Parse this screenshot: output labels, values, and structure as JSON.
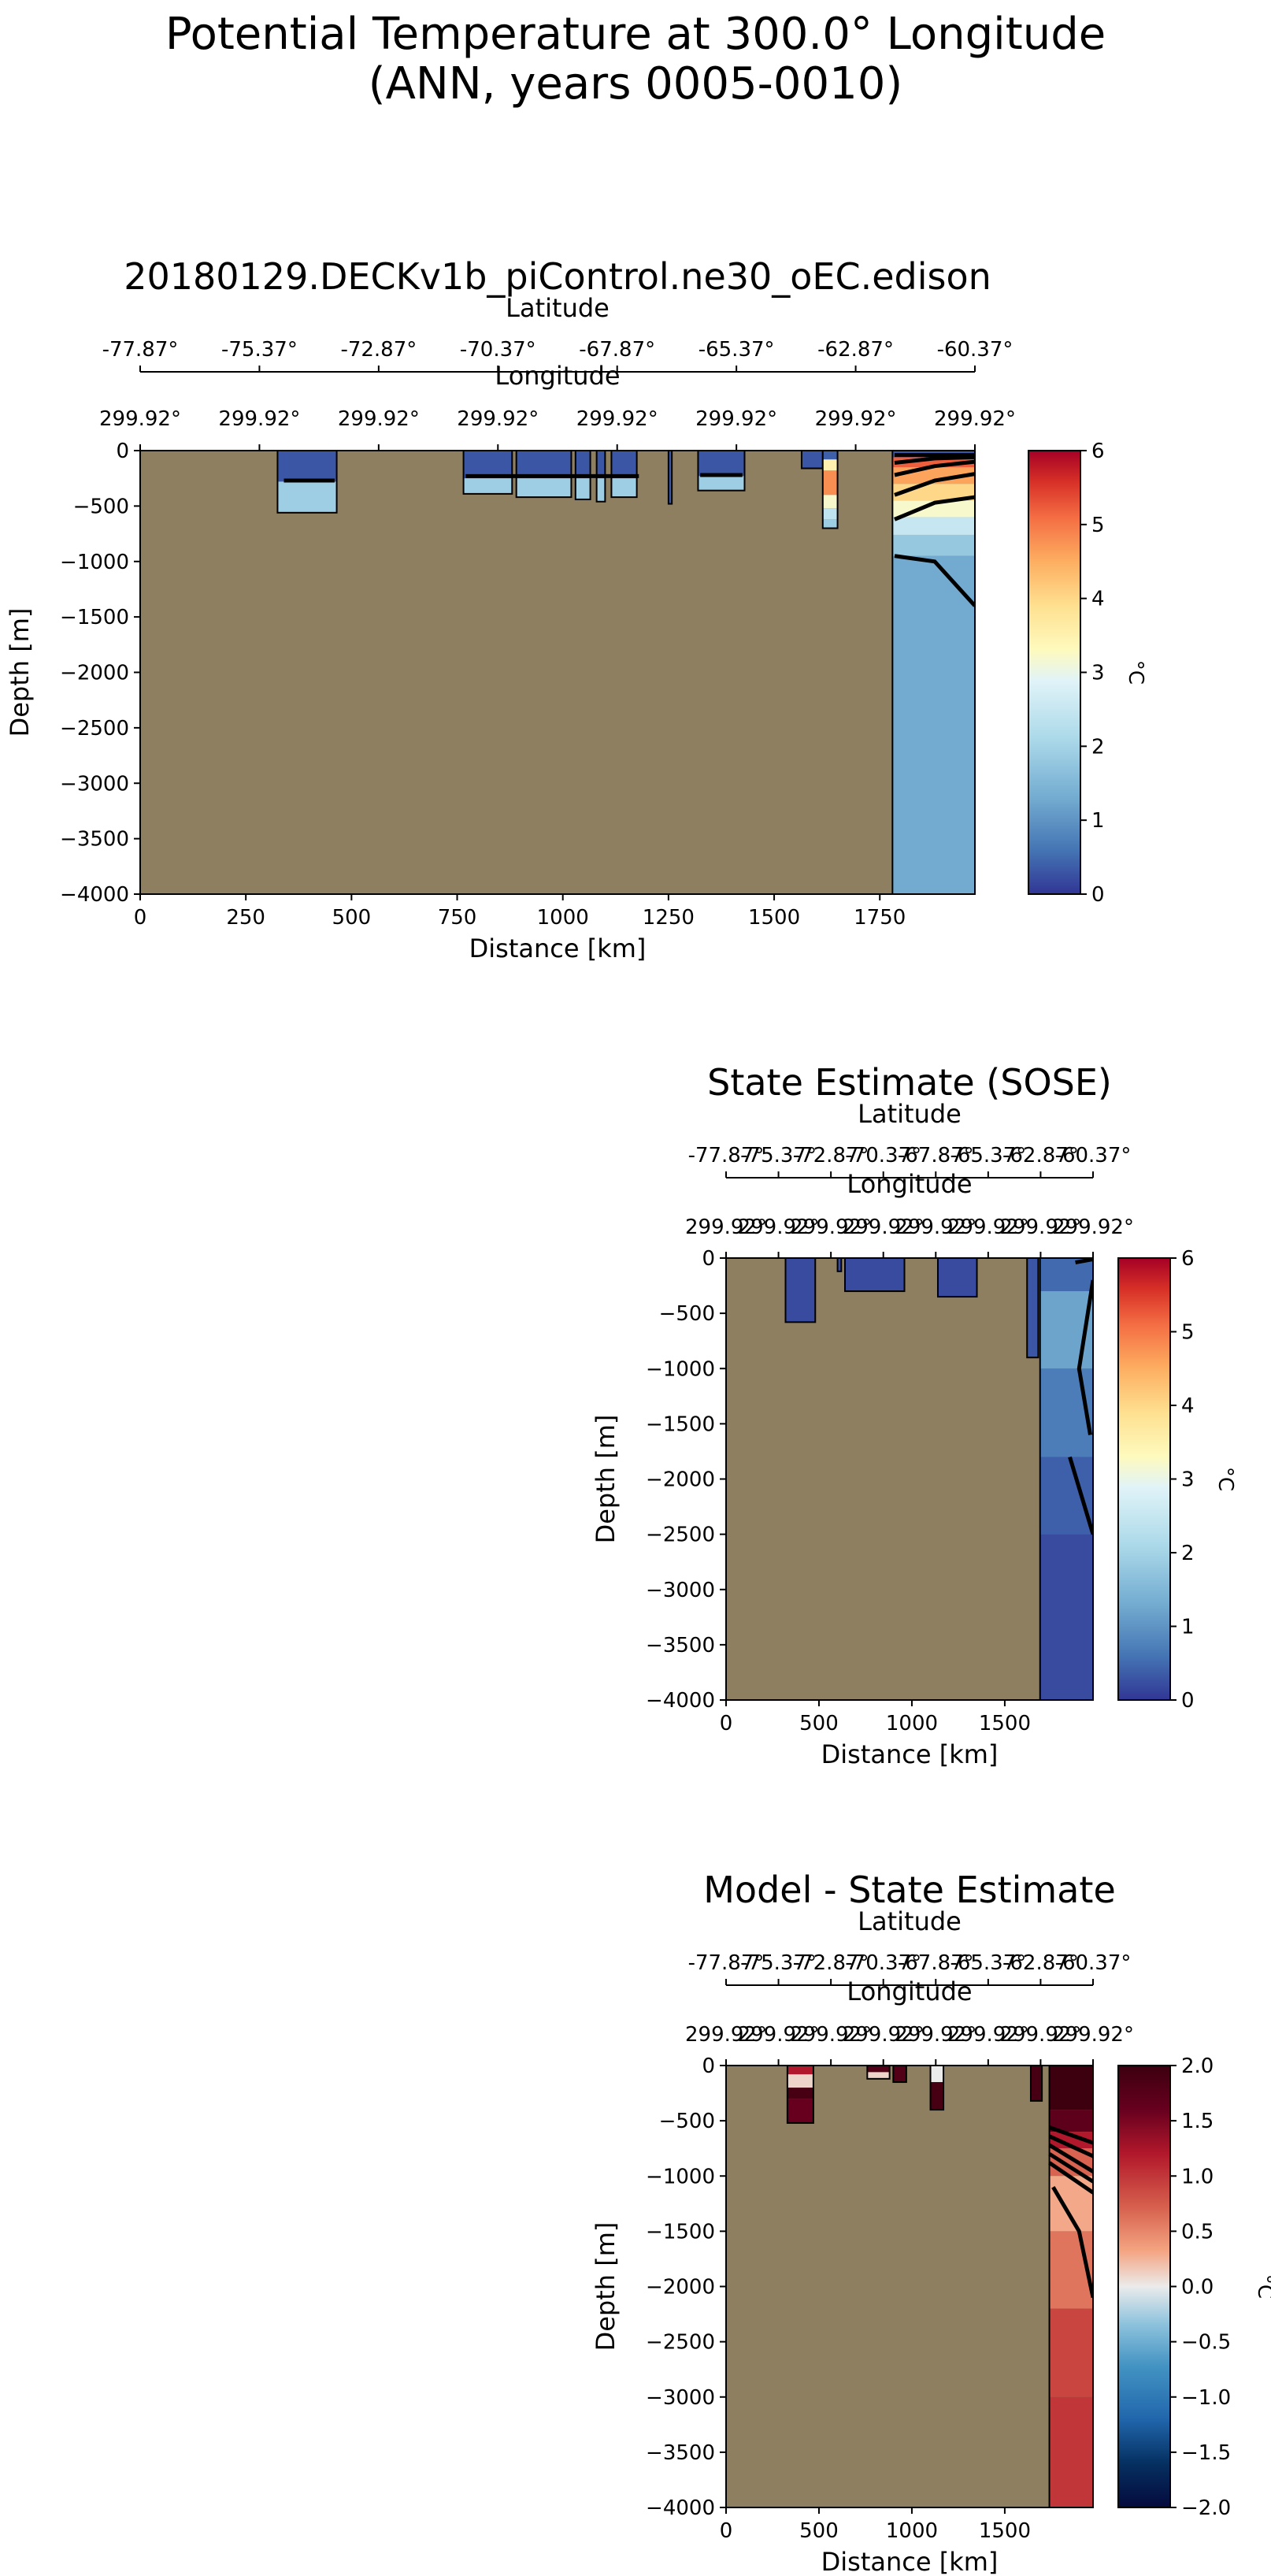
{
  "figure": {
    "title_line1": "Potential Temperature at 300.0° Longitude",
    "title_line2": "(ANN, years 0005-0010)"
  },
  "colors": {
    "land": "#8f7f61",
    "contour": "#000000"
  },
  "chart_data": [
    {
      "id": "model",
      "type": "heatmap",
      "title": "20180129.DECKv1b_piControl.ne30_oEC.edison",
      "xlabel": "Distance [km]",
      "ylabel": "Depth [m]",
      "xlim": [
        0,
        1975
      ],
      "ylim": [
        -4000,
        0
      ],
      "x_ticks": [
        0,
        250,
        500,
        750,
        1000,
        1250,
        1500,
        1750
      ],
      "x_tick_labels": [
        "0",
        "250",
        "500",
        "750",
        "1000",
        "1250",
        "1500",
        "1750"
      ],
      "y_ticks": [
        0,
        -500,
        -1000,
        -1500,
        -2000,
        -2500,
        -3000,
        -3500,
        -4000
      ],
      "y_tick_labels": [
        "0",
        "−500",
        "−1000",
        "−1500",
        "−2000",
        "−2500",
        "−3000",
        "−3500",
        "−4000"
      ],
      "lat_axis_label": "Latitude",
      "lat_tick_labels": [
        "-77.87°",
        "-75.37°",
        "-72.87°",
        "-70.37°",
        "-67.87°",
        "-65.37°",
        "-62.87°",
        "-60.37°"
      ],
      "lon_axis_label": "Longitude",
      "lon_tick_labels": [
        "299.92°",
        "299.92°",
        "299.92°",
        "299.92°",
        "299.92°",
        "299.92°",
        "299.92°",
        "299.92°"
      ],
      "colorbar": {
        "label": "°C",
        "range": [
          0,
          6
        ],
        "ticks": [
          "0",
          "1",
          "2",
          "3",
          "4",
          "5",
          "6"
        ],
        "colormap": "RdYlBu_r"
      },
      "ocean_cells": [
        {
          "x": [
            325,
            465
          ],
          "bottom": -560,
          "temps": [
            [
              -280,
              0.3
            ],
            [
              -560,
              1.9
            ]
          ]
        },
        {
          "x": [
            765,
            880
          ],
          "bottom": -390,
          "temps": [
            [
              -250,
              0.3
            ],
            [
              -390,
              1.9
            ]
          ]
        },
        {
          "x": [
            890,
            1020
          ],
          "bottom": -420,
          "temps": [
            [
              -250,
              0.3
            ],
            [
              -420,
              1.9
            ]
          ]
        },
        {
          "x": [
            1030,
            1065
          ],
          "bottom": -440,
          "temps": [
            [
              -250,
              0.3
            ],
            [
              -440,
              1.9
            ]
          ]
        },
        {
          "x": [
            1080,
            1100
          ],
          "bottom": -460,
          "temps": [
            [
              -250,
              0.3
            ],
            [
              -460,
              1.9
            ]
          ]
        },
        {
          "x": [
            1115,
            1175
          ],
          "bottom": -420,
          "temps": [
            [
              -250,
              0.3
            ],
            [
              -420,
              1.9
            ]
          ]
        },
        {
          "x": [
            1250,
            1258
          ],
          "bottom": -480,
          "temps": [
            [
              -480,
              0.3
            ]
          ]
        },
        {
          "x": [
            1320,
            1430
          ],
          "bottom": -360,
          "temps": [
            [
              -230,
              0.3
            ],
            [
              -360,
              1.9
            ]
          ]
        },
        {
          "x": [
            1565,
            1615
          ],
          "bottom": -160,
          "temps": [
            [
              -160,
              0.3
            ]
          ]
        },
        {
          "x": [
            1615,
            1650
          ],
          "bottom": -700,
          "temps": [
            [
              -80,
              0.4
            ],
            [
              -180,
              3.5
            ],
            [
              -400,
              4.8
            ],
            [
              -520,
              3.2
            ],
            [
              -620,
              2.4
            ],
            [
              -700,
              1.9
            ]
          ]
        },
        {
          "x": [
            1780,
            1975
          ],
          "bottom": -4000,
          "temps": [
            [
              -60,
              0.3
            ],
            [
              -150,
              5.2
            ],
            [
              -300,
              4.6
            ],
            [
              -450,
              4.0
            ],
            [
              -600,
              3.2
            ],
            [
              -760,
              2.5
            ],
            [
              -950,
              1.8
            ],
            [
              -4000,
              1.3
            ]
          ]
        }
      ],
      "contours": [
        {
          "points": [
            [
              340,
              -270
            ],
            [
              460,
              -270
            ]
          ]
        },
        {
          "points": [
            [
              770,
              -230
            ],
            [
              1180,
              -230
            ]
          ]
        },
        {
          "points": [
            [
              1325,
              -220
            ],
            [
              1425,
              -220
            ]
          ]
        },
        {
          "points": [
            [
              1785,
              -40
            ],
            [
              1975,
              -40
            ]
          ]
        },
        {
          "points": [
            [
              1785,
              -110
            ],
            [
              1880,
              -70
            ],
            [
              1975,
              -60
            ]
          ]
        },
        {
          "points": [
            [
              1785,
              -220
            ],
            [
              1880,
              -140
            ],
            [
              1975,
              -100
            ]
          ]
        },
        {
          "points": [
            [
              1785,
              -400
            ],
            [
              1880,
              -270
            ],
            [
              1975,
              -210
            ]
          ]
        },
        {
          "points": [
            [
              1785,
              -620
            ],
            [
              1880,
              -470
            ],
            [
              1975,
              -420
            ]
          ]
        },
        {
          "points": [
            [
              1785,
              -950
            ],
            [
              1880,
              -1000
            ],
            [
              1975,
              -1400
            ]
          ]
        }
      ]
    },
    {
      "id": "obs",
      "type": "heatmap",
      "title": "State Estimate (SOSE)",
      "xlabel": "Distance [km]",
      "ylabel": "Depth [m]",
      "xlim": [
        0,
        1975
      ],
      "ylim": [
        -4000,
        0
      ],
      "x_ticks": [
        0,
        500,
        1000,
        1500
      ],
      "x_tick_labels": [
        "0",
        "500",
        "1000",
        "1500"
      ],
      "y_ticks": [
        0,
        -500,
        -1000,
        -1500,
        -2000,
        -2500,
        -3000,
        -3500,
        -4000
      ],
      "y_tick_labels": [
        "0",
        "−500",
        "−1000",
        "−1500",
        "−2000",
        "−2500",
        "−3000",
        "−3500",
        "−4000"
      ],
      "lat_axis_label": "Latitude",
      "lat_tick_labels": [
        "-77.87°",
        "-75.37°",
        "-72.87°",
        "-70.37°",
        "-67.87°",
        "-65.37°",
        "-62.87°",
        "-60.37°"
      ],
      "lon_axis_label": "Longitude",
      "lon_tick_labels": [
        "299.92°",
        "299.92°",
        "299.92°",
        "299.92°",
        "299.92°",
        "299.92°",
        "299.92°",
        "299.92°"
      ],
      "colorbar": {
        "label": "°C",
        "range": [
          0,
          6
        ],
        "ticks": [
          "0",
          "1",
          "2",
          "3",
          "4",
          "5",
          "6"
        ],
        "colormap": "RdYlBu_r"
      },
      "ocean_cells": [
        {
          "x": [
            320,
            480
          ],
          "bottom": -580,
          "temps": [
            [
              -580,
              0.2
            ]
          ]
        },
        {
          "x": [
            600,
            620
          ],
          "bottom": -120,
          "temps": [
            [
              -120,
              0.2
            ]
          ]
        },
        {
          "x": [
            640,
            960
          ],
          "bottom": -300,
          "temps": [
            [
              -300,
              0.2
            ]
          ]
        },
        {
          "x": [
            1140,
            1350
          ],
          "bottom": -350,
          "temps": [
            [
              -350,
              0.2
            ]
          ]
        },
        {
          "x": [
            1620,
            1680
          ],
          "bottom": -900,
          "temps": [
            [
              -900,
              0.3
            ]
          ]
        },
        {
          "x": [
            1690,
            1975
          ],
          "bottom": -4000,
          "temps": [
            [
              -300,
              0.5
            ],
            [
              -1000,
              1.2
            ],
            [
              -1800,
              0.7
            ],
            [
              -2500,
              0.4
            ],
            [
              -4000,
              0.2
            ]
          ]
        }
      ],
      "contours": [
        {
          "points": [
            [
              1880,
              -40
            ],
            [
              1975,
              -10
            ]
          ]
        },
        {
          "points": [
            [
              1960,
              -1600
            ],
            [
              1900,
              -1000
            ],
            [
              1975,
              -200
            ]
          ]
        },
        {
          "points": [
            [
              1850,
              -1800
            ],
            [
              1975,
              -2500
            ]
          ]
        }
      ]
    },
    {
      "id": "diff",
      "type": "heatmap",
      "title": "Model - State Estimate",
      "xlabel": "Distance [km]",
      "ylabel": "Depth [m]",
      "xlim": [
        0,
        1975
      ],
      "ylim": [
        -4000,
        0
      ],
      "x_ticks": [
        0,
        500,
        1000,
        1500
      ],
      "x_tick_labels": [
        "0",
        "500",
        "1000",
        "1500"
      ],
      "y_ticks": [
        0,
        -500,
        -1000,
        -1500,
        -2000,
        -2500,
        -3000,
        -3500,
        -4000
      ],
      "y_tick_labels": [
        "0",
        "−500",
        "−1000",
        "−1500",
        "−2000",
        "−2500",
        "−3000",
        "−3500",
        "−4000"
      ],
      "lat_axis_label": "Latitude",
      "lat_tick_labels": [
        "-77.87°",
        "-75.37°",
        "-72.87°",
        "-70.37°",
        "-67.87°",
        "-65.37°",
        "-62.87°",
        "-60.37°"
      ],
      "lon_axis_label": "Longitude",
      "lon_tick_labels": [
        "299.92°",
        "299.92°",
        "299.92°",
        "299.92°",
        "299.92°",
        "299.92°",
        "299.92°",
        "299.92°"
      ],
      "colorbar": {
        "label": "°C",
        "range": [
          -2,
          2
        ],
        "ticks": [
          "−2.0",
          "−1.5",
          "−1.0",
          "−0.5",
          "0.0",
          "0.5",
          "1.0",
          "1.5",
          "2.0"
        ],
        "colormap": "RdBu_r"
      },
      "ocean_cells": [
        {
          "x": [
            330,
            470
          ],
          "bottom": -520,
          "temps": [
            [
              -80,
              1.2
            ],
            [
              -200,
              0.1
            ],
            [
              -300,
              1.9
            ],
            [
              -520,
              1.6
            ]
          ]
        },
        {
          "x": [
            760,
            880
          ],
          "bottom": -120,
          "temps": [
            [
              -60,
              1.8
            ],
            [
              -120,
              0.1
            ]
          ]
        },
        {
          "x": [
            900,
            970
          ],
          "bottom": -150,
          "temps": [
            [
              -150,
              1.8
            ]
          ]
        },
        {
          "x": [
            1100,
            1170
          ],
          "bottom": -400,
          "temps": [
            [
              -150,
              0.0
            ],
            [
              -400,
              1.9
            ]
          ]
        },
        {
          "x": [
            1640,
            1700
          ],
          "bottom": -320,
          "temps": [
            [
              -320,
              1.9
            ]
          ]
        },
        {
          "x": [
            1740,
            1975
          ],
          "bottom": -4000,
          "temps": [
            [
              -400,
              2.0
            ],
            [
              -600,
              1.7
            ],
            [
              -750,
              1.2
            ],
            [
              -1000,
              0.7
            ],
            [
              -1500,
              0.3
            ],
            [
              -2200,
              0.6
            ],
            [
              -3000,
              0.9
            ],
            [
              -4000,
              1.0
            ]
          ]
        }
      ],
      "contours": [
        {
          "points": [
            [
              1740,
              -560
            ],
            [
              1975,
              -700
            ]
          ]
        },
        {
          "points": [
            [
              1740,
              -640
            ],
            [
              1975,
              -820
            ]
          ]
        },
        {
          "points": [
            [
              1740,
              -720
            ],
            [
              1975,
              -960
            ]
          ]
        },
        {
          "points": [
            [
              1740,
              -800
            ],
            [
              1975,
              -1050
            ]
          ]
        },
        {
          "points": [
            [
              1740,
              -880
            ],
            [
              1975,
              -1150
            ]
          ]
        },
        {
          "points": [
            [
              1760,
              -1100
            ],
            [
              1900,
              -1500
            ],
            [
              1975,
              -2100
            ]
          ]
        }
      ]
    }
  ]
}
